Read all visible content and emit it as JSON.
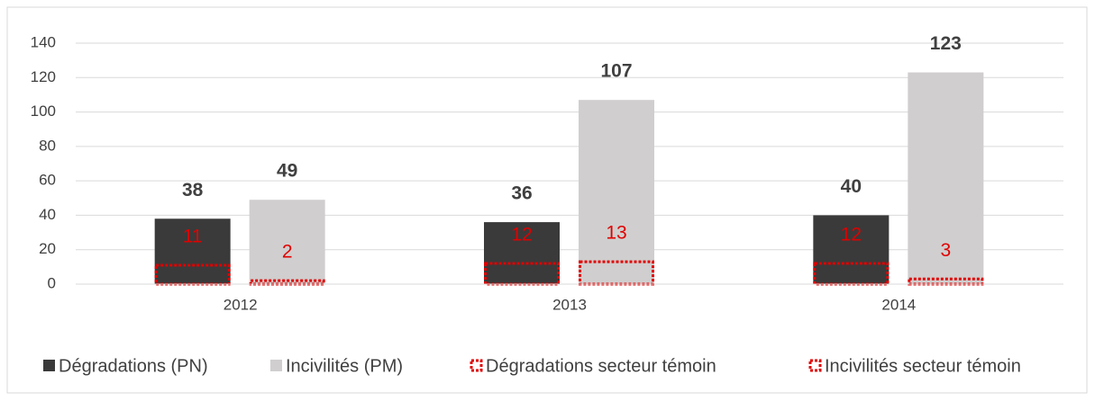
{
  "chart_data": {
    "type": "bar",
    "categories": [
      "2012",
      "2013",
      "2014"
    ],
    "series": [
      {
        "name": "Dégradations (PN)",
        "color": "#3a3a3a",
        "values": [
          38,
          36,
          40
        ]
      },
      {
        "name": "Incivilités (PM)",
        "color": "#d0cece",
        "values": [
          49,
          107,
          123
        ]
      },
      {
        "name": "Dégradations secteur témoin",
        "color": "#e00000",
        "style": "dotted",
        "values": [
          11,
          12,
          12
        ]
      },
      {
        "name": "Incivilités secteur témoin",
        "color": "#e00000",
        "style": "dotted",
        "values": [
          2,
          13,
          3
        ]
      }
    ],
    "ylim": [
      0,
      140
    ],
    "yticks": [
      0,
      20,
      40,
      60,
      80,
      100,
      120,
      140
    ],
    "grid": true,
    "legend": "bottom"
  }
}
